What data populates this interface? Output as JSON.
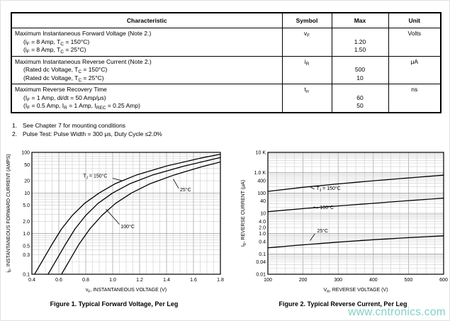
{
  "watermark": "www.cntronics.com",
  "table": {
    "headers": [
      "Characteristic",
      "Symbol",
      "Max",
      "Unit"
    ],
    "rows": [
      {
        "title": "Maximum Instantaneous Forward Voltage (Note 2.)",
        "conditions": [
          "(i<sub>F</sub> = 8 Amp, T<sub>C</sub> = 150°C)",
          "(i<sub>F</sub> = 8 Amp, T<sub>C</sub> = 25°C)"
        ],
        "symbol": "v<sub>F</sub>",
        "max": [
          "1.20",
          "1.50"
        ],
        "unit": "Volts"
      },
      {
        "title": "Maximum Instantaneous Reverse Current (Note 2.)",
        "conditions": [
          "(Rated dc Voltage, T<sub>C</sub> = 150°C)",
          "(Rated dc Voltage, T<sub>C</sub> = 25°C)"
        ],
        "symbol": "i<sub>R</sub>",
        "max": [
          "500",
          "10"
        ],
        "unit": "μA"
      },
      {
        "title": "Maximum Reverse Recovery Time",
        "conditions": [
          "(I<sub>F</sub> = 1 Amp, di/dt = 50 Amp/μs)",
          "(I<sub>F</sub> = 0.5 Amp, I<sub>R</sub> = 1 Amp, I<sub>REC</sub> = 0.25 Amp)"
        ],
        "symbol": "t<sub>rr</sub>",
        "max": [
          "60",
          "50"
        ],
        "unit": "ns"
      }
    ]
  },
  "notes": [
    {
      "num": "1.",
      "text": "See Chapter 7 for mounting conditions"
    },
    {
      "num": "2.",
      "text": "Pulse Test: Pulse Width = 300 μs, Duty Cycle ≤2.0%"
    }
  ],
  "chart_data": [
    {
      "type": "line",
      "title": "Figure 1. Typical Forward Voltage, Per Leg",
      "xlabel": {
        "pre": "v",
        "sub": "F",
        "rest": ", INSTANTANEOUS VOLTAGE (V)"
      },
      "ylabel": {
        "pre": "i",
        "sub": "F",
        "rest": ", INSTANTANEOUS FORWARD CURRENT (AMPS)"
      },
      "xscale": "linear",
      "yscale": "log",
      "xlim": [
        0.4,
        1.8
      ],
      "ylim": [
        0.1,
        100
      ],
      "xminor": 0.05,
      "xticks": [
        0.4,
        0.6,
        0.8,
        1.0,
        1.2,
        1.4,
        1.6,
        1.8
      ],
      "xtick_labels": [
        "0.4",
        "0.6",
        "0.8",
        "1.0",
        "1.2",
        "1.4",
        "1.6",
        "1.8"
      ],
      "yticks": [
        100,
        50,
        20,
        10,
        5,
        2,
        1,
        0.5,
        0.3,
        0.1
      ],
      "ytick_labels": [
        "100",
        "50",
        "20",
        "10",
        "5.0",
        "2.0",
        "1.0",
        "0.5",
        "0.3",
        "0.1"
      ],
      "grid": true,
      "series": [
        {
          "name": "TJ = 150°C",
          "x": [
            0.42,
            0.48,
            0.55,
            0.62,
            0.7,
            0.79,
            0.9,
            1.02,
            1.18,
            1.4,
            1.65,
            1.8
          ],
          "y": [
            0.1,
            0.22,
            0.55,
            1.3,
            2.8,
            5.5,
            10,
            17,
            28,
            46,
            72,
            90
          ]
        },
        {
          "name": "100°C",
          "x": [
            0.52,
            0.58,
            0.65,
            0.72,
            0.8,
            0.89,
            1.0,
            1.13,
            1.3,
            1.52,
            1.8
          ],
          "y": [
            0.1,
            0.22,
            0.55,
            1.3,
            2.8,
            5.5,
            10,
            17,
            28,
            45,
            75
          ]
        },
        {
          "name": "25°C",
          "x": [
            0.62,
            0.68,
            0.75,
            0.83,
            0.92,
            1.02,
            1.14,
            1.28,
            1.46,
            1.66,
            1.8
          ],
          "y": [
            0.1,
            0.22,
            0.55,
            1.3,
            2.8,
            5.5,
            10,
            17,
            28,
            44,
            58
          ]
        }
      ],
      "labels": [
        {
          "text": {
            "pre": "T",
            "sub": "J",
            "rest": " = 150°C"
          },
          "x": 0.78,
          "y": 24,
          "leader": [
            1.0,
            23,
            1.07,
            20
          ]
        },
        {
          "text": {
            "rest": "25°C"
          },
          "x": 1.5,
          "y": 11,
          "leader": [
            1.49,
            13,
            1.45,
            22
          ]
        },
        {
          "text": {
            "rest": "100°C"
          },
          "x": 1.06,
          "y": 1.35,
          "leader": [
            1.05,
            1.7,
            0.95,
            4.0
          ]
        }
      ]
    },
    {
      "type": "line",
      "title": "Figure 2. Typical Reverse Current, Per Leg",
      "xlabel": {
        "pre": "V",
        "sub": "R",
        "rest": ", REVERSE VOLTAGE (V)"
      },
      "ylabel": {
        "pre": "I",
        "sub": "R",
        "rest": ", REVERSE CURRENT (μA)"
      },
      "xscale": "linear",
      "yscale": "log",
      "xlim": [
        100,
        600
      ],
      "ylim": [
        0.01,
        10000
      ],
      "xminor": 25,
      "xticks": [
        100,
        200,
        300,
        400,
        500,
        600
      ],
      "xtick_labels": [
        "100",
        "200",
        "300",
        "400",
        "500",
        "600"
      ],
      "yticks": [
        10000,
        1000,
        400,
        100,
        40,
        10,
        4,
        2,
        1,
        0.4,
        0.1,
        0.04,
        0.01
      ],
      "ytick_labels": [
        "10 K",
        "1.0 K",
        "400",
        "100",
        "40",
        "10",
        "4.0",
        "2.0",
        "1.0",
        "0.4",
        "0.1",
        "0.04",
        "0.01"
      ],
      "grid": true,
      "series": [
        {
          "name": "TJ = 150°C",
          "x": [
            100,
            200,
            300,
            400,
            500,
            600
          ],
          "y": [
            120,
            190,
            280,
            400,
            550,
            750
          ]
        },
        {
          "name": "100°C",
          "x": [
            100,
            200,
            300,
            400,
            500,
            600
          ],
          "y": [
            12,
            17,
            23,
            31,
            42,
            56
          ]
        },
        {
          "name": "25°C",
          "x": [
            100,
            200,
            300,
            400,
            500,
            600
          ],
          "y": [
            0.2,
            0.28,
            0.38,
            0.5,
            0.63,
            0.78
          ]
        }
      ],
      "labels": [
        {
          "text": {
            "pre": "T",
            "sub": "J",
            "rest": " = 150°C"
          },
          "x": 238,
          "y": 140,
          "leader": [
            232,
            155,
            220,
            200
          ]
        },
        {
          "text": {
            "rest": "100°C"
          },
          "x": 248,
          "y": 16,
          "leader": [
            242,
            17.5,
            230,
            21
          ]
        },
        {
          "text": {
            "rest": "25°C"
          },
          "x": 240,
          "y": 1.15,
          "leader": [
            234,
            1.0,
            220,
            0.45
          ]
        }
      ]
    }
  ]
}
